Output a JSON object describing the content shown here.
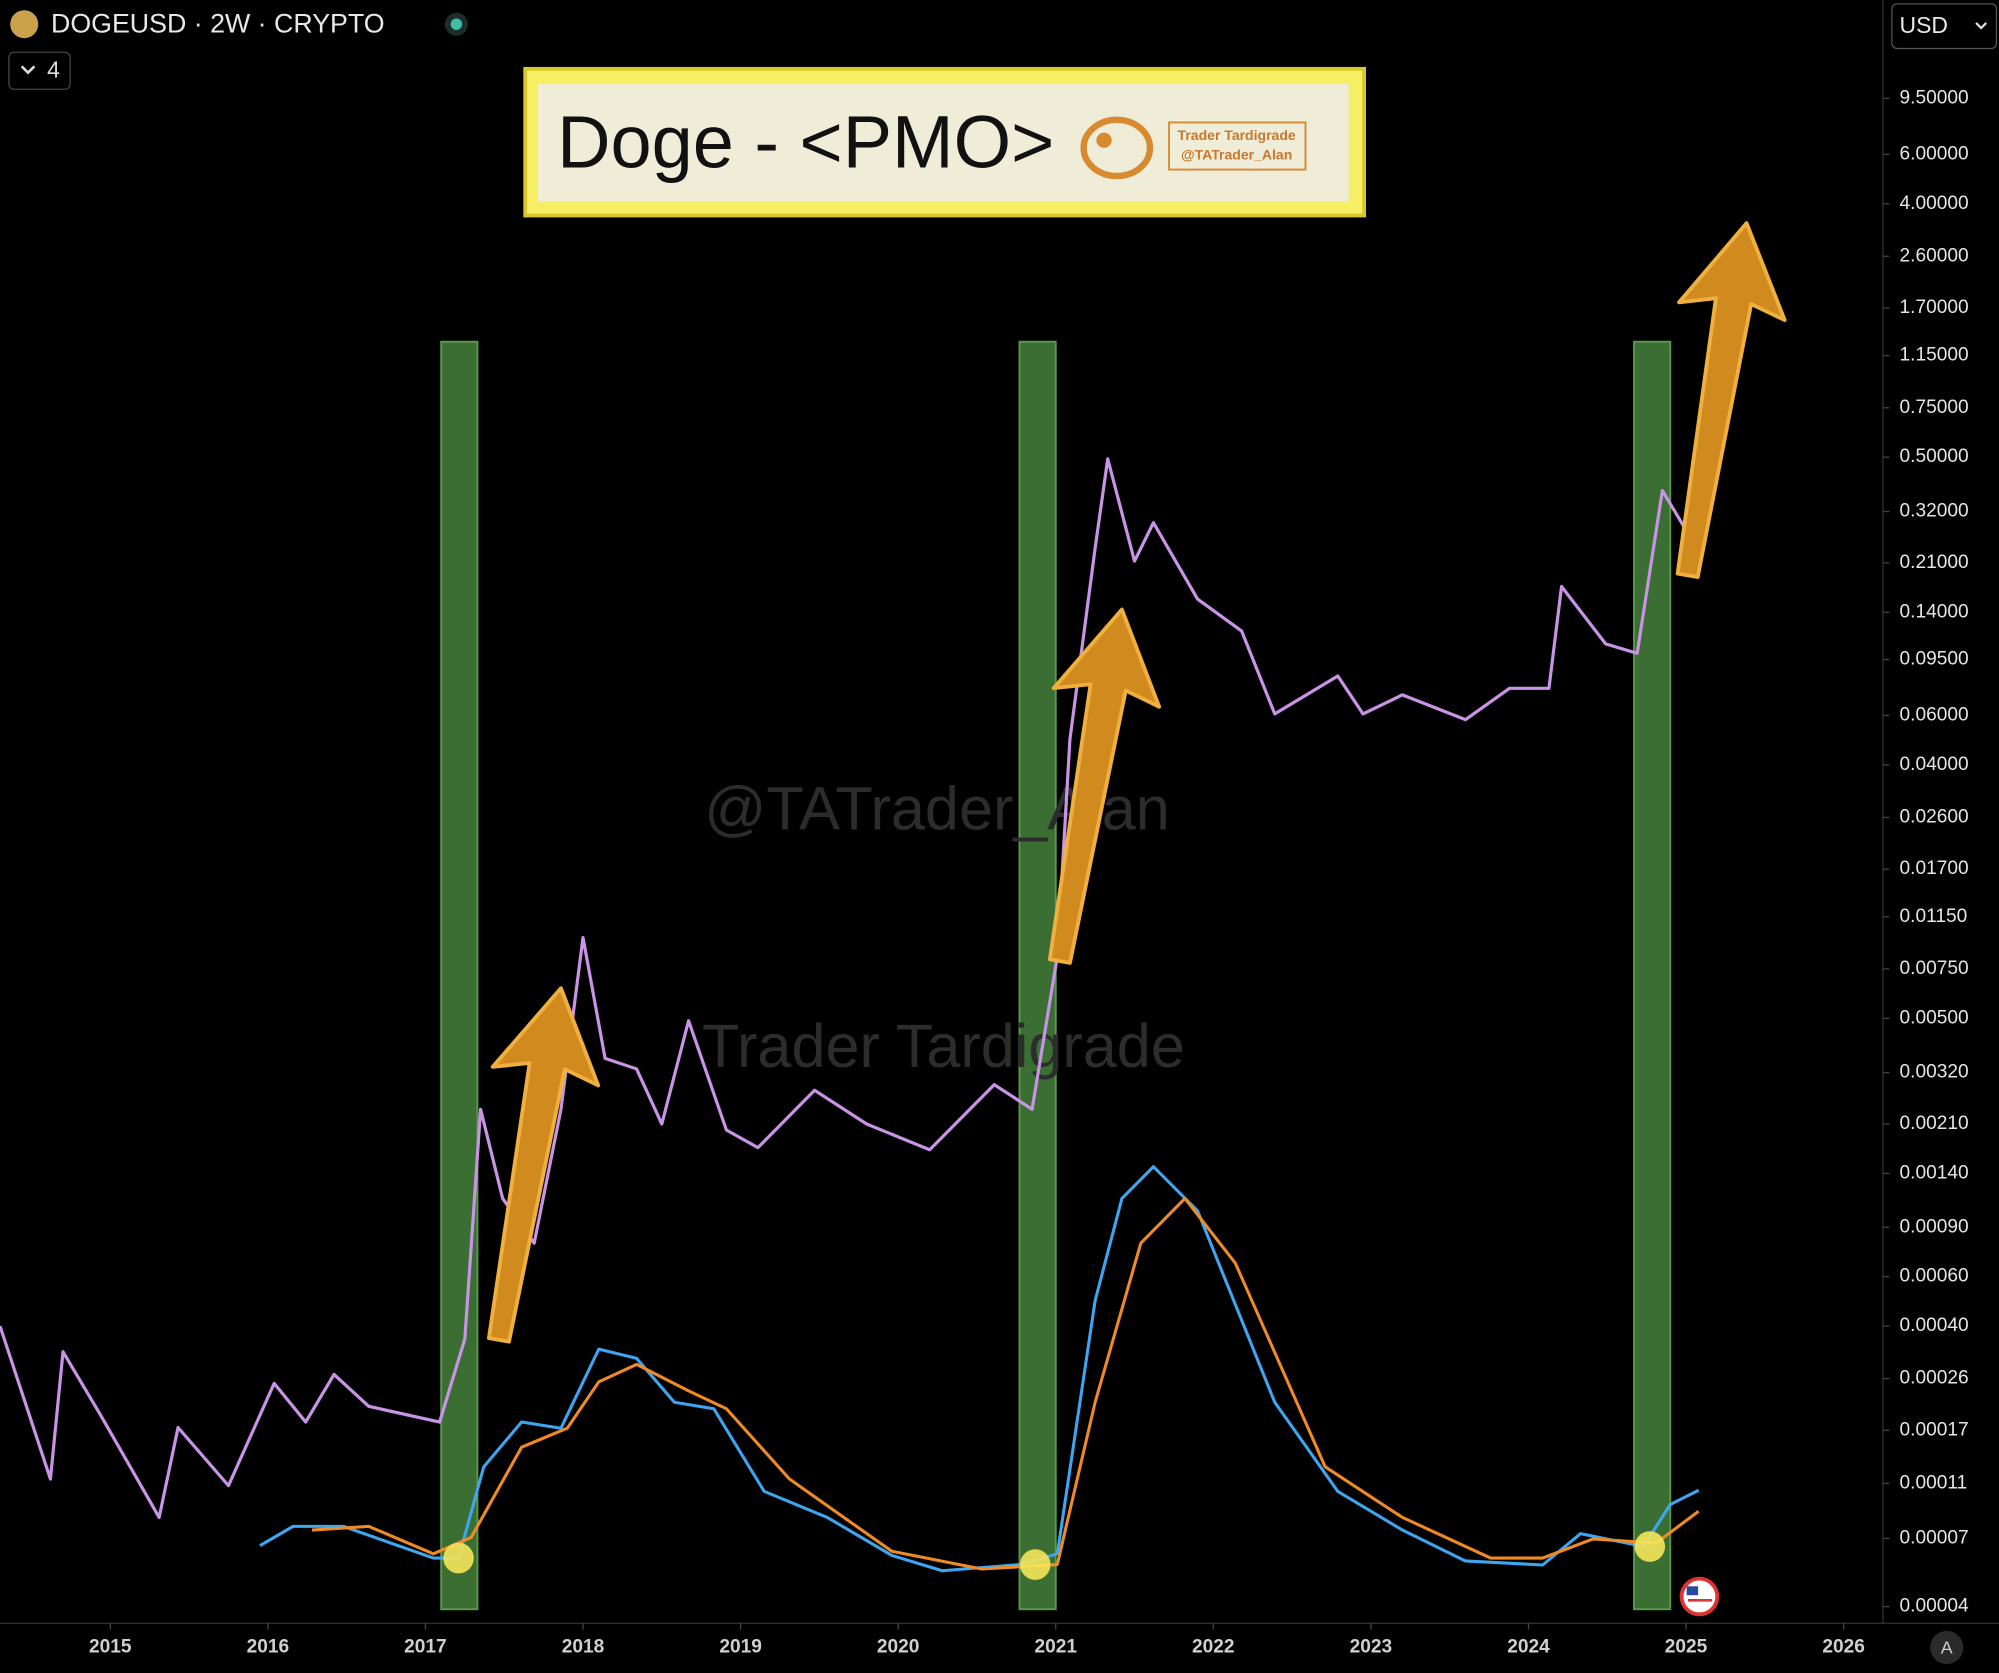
{
  "header": {
    "symbol": "DOGEUSD · 2W · CRYPTO",
    "indicator_count": "4",
    "currency": "USD"
  },
  "chart_data": {
    "type": "line",
    "title": "Doge - <PMO>",
    "logo_lines": [
      "Trader Tardigrade",
      "@TATrader_Alan"
    ],
    "watermarks": [
      "@TATrader_Alan",
      "Trader Tardigrade"
    ],
    "log_scale": true,
    "xlim": [
      2014.3,
      2026.25
    ],
    "xticks": [
      2015,
      2016,
      2017,
      2018,
      2019,
      2020,
      2021,
      2022,
      2023,
      2024,
      2025,
      2026
    ],
    "ylim": [
      3.49e-05,
      21.3
    ],
    "yticks": [
      {
        "value": 9.5,
        "label": "9.50000"
      },
      {
        "value": 6,
        "label": "6.00000"
      },
      {
        "value": 4,
        "label": "4.00000"
      },
      {
        "value": 2.6,
        "label": "2.60000"
      },
      {
        "value": 1.7,
        "label": "1.70000"
      },
      {
        "value": 1.15,
        "label": "1.15000"
      },
      {
        "value": 0.75,
        "label": "0.75000"
      },
      {
        "value": 0.5,
        "label": "0.50000"
      },
      {
        "value": 0.32,
        "label": "0.32000"
      },
      {
        "value": 0.21,
        "label": "0.21000"
      },
      {
        "value": 0.14,
        "label": "0.14000"
      },
      {
        "value": 0.095,
        "label": "0.09500"
      },
      {
        "value": 0.06,
        "label": "0.06000"
      },
      {
        "value": 0.04,
        "label": "0.04000"
      },
      {
        "value": 0.026,
        "label": "0.02600"
      },
      {
        "value": 0.017,
        "label": "0.01700"
      },
      {
        "value": 0.0115,
        "label": "0.01150"
      },
      {
        "value": 0.0075,
        "label": "0.00750"
      },
      {
        "value": 0.005,
        "label": "0.00500"
      },
      {
        "value": 0.0032,
        "label": "0.00320"
      },
      {
        "value": 0.0021,
        "label": "0.00210"
      },
      {
        "value": 0.0014,
        "label": "0.00140"
      },
      {
        "value": 0.0009,
        "label": "0.00090"
      },
      {
        "value": 0.0006,
        "label": "0.00060"
      },
      {
        "value": 0.0004,
        "label": "0.00040"
      },
      {
        "value": 0.00026,
        "label": "0.00026"
      },
      {
        "value": 0.00017,
        "label": "0.00017"
      },
      {
        "value": 0.00011,
        "label": "0.00011"
      },
      {
        "value": 7e-05,
        "label": "0.00007"
      },
      {
        "value": 4e-05,
        "label": "0.00004"
      }
    ],
    "series": [
      {
        "color": "#c994e6",
        "x": [
          2014.3,
          2014.62,
          2014.7,
          2014.94,
          2015.31,
          2015.43,
          2015.75,
          2016.04,
          2016.24,
          2016.42,
          2016.64,
          2017.09,
          2017.25,
          2017.35,
          2017.49,
          2017.69,
          2017.86,
          2018.0,
          2018.14,
          2018.34,
          2018.5,
          2018.67,
          2018.91,
          2019.11,
          2019.47,
          2019.8,
          2020.2,
          2020.61,
          2020.85,
          2021.01,
          2021.09,
          2021.25,
          2021.33,
          2021.5,
          2021.62,
          2021.9,
          2022.18,
          2022.39,
          2022.79,
          2022.95,
          2023.2,
          2023.6,
          2023.88,
          2024.13,
          2024.21,
          2024.49,
          2024.69,
          2024.85,
          2025.02,
          2025.14,
          2025.18,
          2025.26
        ],
        "values": [
          0.0004,
          0.000114,
          0.000324,
          0.000192,
          8.32e-05,
          0.000174,
          0.000108,
          0.00025,
          0.000182,
          0.000269,
          0.000207,
          0.000182,
          0.00036,
          0.00237,
          0.00114,
          0.00079,
          0.00237,
          0.0097,
          0.0036,
          0.0033,
          0.0021,
          0.0049,
          0.002,
          0.00173,
          0.00277,
          0.0021,
          0.0017,
          0.0029,
          0.00237,
          0.0083,
          0.0493,
          0.237,
          0.493,
          0.213,
          0.292,
          0.156,
          0.12,
          0.0608,
          0.083,
          0.0608,
          0.0711,
          0.058,
          0.075,
          0.075,
          0.173,
          0.108,
          0.1,
          0.38,
          0.263,
          0.38,
          0.675,
          2.63
        ]
      },
      {
        "color": "#3ea6f0",
        "x": [
          2015.95,
          2016.16,
          2016.48,
          2017.05,
          2017.21,
          2017.37,
          2017.61,
          2017.86,
          2018.1,
          2018.34,
          2018.58,
          2018.83,
          2019.15,
          2019.55,
          2019.96,
          2020.28,
          2020.77,
          2021.01,
          2021.25,
          2021.42,
          2021.62,
          2021.9,
          2022.39,
          2022.79,
          2023.2,
          2023.6,
          2024.09,
          2024.33,
          2024.73,
          2024.9,
          2025.08
        ],
        "values": [
          6.6e-05,
          7.73e-05,
          7.73e-05,
          5.96e-05,
          5.96e-05,
          0.000126,
          0.000182,
          0.000173,
          0.000331,
          0.000307,
          0.000214,
          0.000203,
          0.000103,
          8.32e-05,
          6.09e-05,
          5.37e-05,
          5.65e-05,
          6.17e-05,
          0.000493,
          0.00114,
          0.00148,
          0.00103,
          0.000214,
          0.000103,
          7.5e-05,
          5.82e-05,
          5.63e-05,
          7.28e-05,
          6.55e-05,
          9.25e-05,
          0.000104
        ]
      },
      {
        "color": "#f08a24",
        "x": [
          2016.28,
          2016.64,
          2017.05,
          2017.29,
          2017.61,
          2017.9,
          2018.1,
          2018.34,
          2018.67,
          2018.91,
          2019.31,
          2019.96,
          2020.53,
          2021.01,
          2021.25,
          2021.54,
          2021.82,
          2022.14,
          2022.71,
          2023.2,
          2023.76,
          2024.09,
          2024.41,
          2024.81,
          2025.08
        ],
        "values": [
          7.5e-05,
          7.73e-05,
          6.17e-05,
          7.06e-05,
          0.000148,
          0.000173,
          0.000253,
          0.000292,
          0.000235,
          0.000203,
          0.000114,
          6.3e-05,
          5.45e-05,
          5.65e-05,
          0.000214,
          0.00079,
          0.00114,
          0.00067,
          0.000126,
          8.32e-05,
          5.96e-05,
          5.96e-05,
          6.97e-05,
          6.74e-05,
          8.75e-05
        ]
      }
    ],
    "highlights": [
      {
        "start": 2017.1,
        "end": 2017.33
      },
      {
        "start": 2020.77,
        "end": 2021.0
      },
      {
        "start": 2024.67,
        "end": 2024.9
      }
    ],
    "highlight_color": "#3a6e32",
    "crossovers": {
      "x": [
        2017.21,
        2020.87,
        2024.77
      ],
      "values": [
        5.96e-05,
        5.65e-05,
        6.55e-05
      ],
      "color": "#f5e65a"
    }
  }
}
